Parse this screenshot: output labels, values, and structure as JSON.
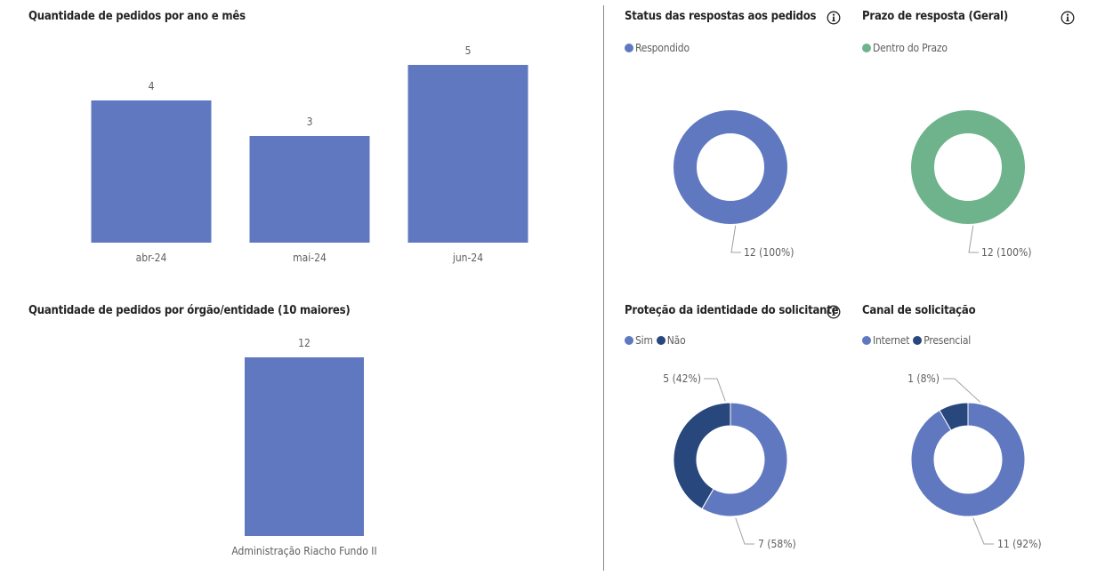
{
  "colors": {
    "bar": "#6078c0",
    "green": "#6fb38c",
    "dark": "#27477d",
    "label": "#605e5c",
    "leader": "#a0a0a0"
  },
  "icons": {
    "info": "info-circle-icon"
  },
  "chart_data": [
    {
      "id": "by_month",
      "type": "bar",
      "title": "Quantidade de pedidos por ano e mês",
      "categories": [
        "abr-24",
        "mai-24",
        "jun-24"
      ],
      "values": [
        4,
        3,
        5
      ],
      "ylim": [
        0,
        5
      ]
    },
    {
      "id": "by_org",
      "type": "bar",
      "title": "Quantidade de pedidos por órgão/entidade (10 maiores)",
      "categories": [
        "Administração Riacho Fundo II"
      ],
      "values": [
        12
      ],
      "ylim": [
        0,
        12
      ]
    },
    {
      "id": "status",
      "type": "pie",
      "title": "Status das respostas aos pedidos",
      "has_info": true,
      "legend_position": "top-left",
      "series": [
        {
          "name": "Respondido",
          "value": 12,
          "label": "12 (100%)",
          "color": "#6078c0"
        }
      ]
    },
    {
      "id": "prazo",
      "type": "pie",
      "title": "Prazo de resposta (Geral)",
      "has_info": true,
      "legend_position": "top-left",
      "series": [
        {
          "name": "Dentro do Prazo",
          "value": 12,
          "label": "12 (100%)",
          "color": "#6fb38c"
        }
      ]
    },
    {
      "id": "identidade",
      "type": "pie",
      "title": "Proteção da identidade do solicitante",
      "has_info": true,
      "legend_position": "top-left",
      "series": [
        {
          "name": "Sim",
          "value": 7,
          "label": "7 (58%)",
          "color": "#6078c0"
        },
        {
          "name": "Não",
          "value": 5,
          "label": "5 (42%)",
          "color": "#27477d"
        }
      ]
    },
    {
      "id": "canal",
      "type": "pie",
      "title": "Canal de solicitação",
      "has_info": false,
      "legend_position": "top-left",
      "series": [
        {
          "name": "Internet",
          "value": 11,
          "label": "11 (92%)",
          "color": "#6078c0"
        },
        {
          "name": "Presencial",
          "value": 1,
          "label": "1 (8%)",
          "color": "#27477d"
        }
      ]
    }
  ]
}
